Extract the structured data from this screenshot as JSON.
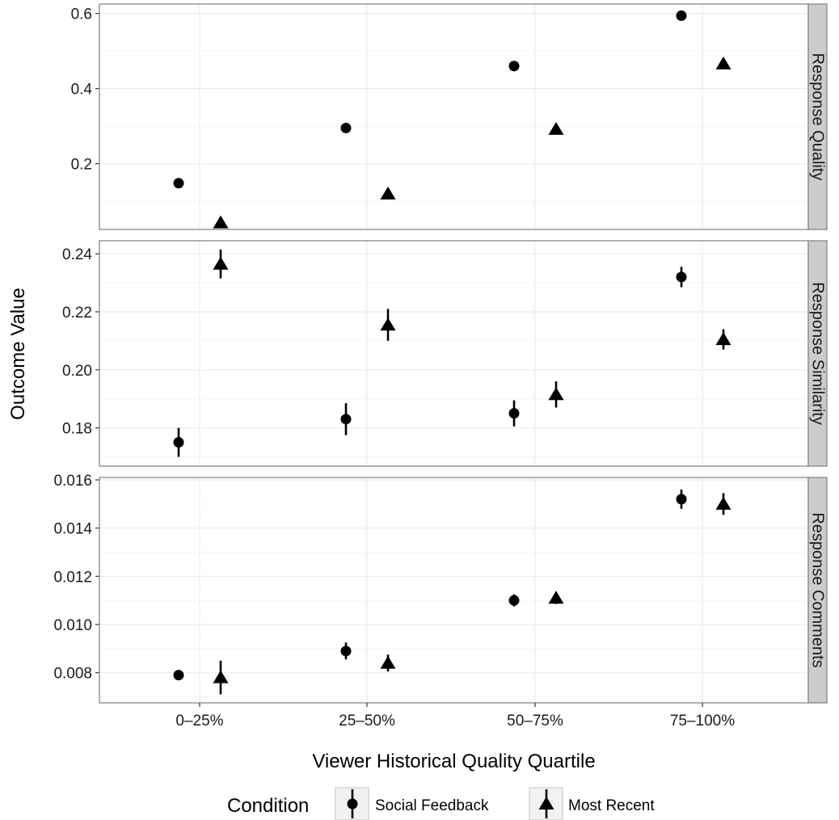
{
  "chart_data": {
    "type": "scatter",
    "xlabel": "Viewer Historical Quality Quartile",
    "ylabel": "Outcome Value",
    "categories": [
      "0–25%",
      "25–50%",
      "50–75%",
      "75–100%"
    ],
    "grid": true,
    "legend": {
      "title": "Condition",
      "position": "bottom",
      "items": [
        {
          "name": "Social Feedback",
          "shape": "circle"
        },
        {
          "name": "Most Recent",
          "shape": "triangle"
        }
      ]
    },
    "colors": {
      "points": "#000000",
      "grid": "#ebebeb",
      "strip": "#cccccc",
      "panel_border": "#7f7f7f"
    },
    "panels": [
      {
        "strip": "Response Quality",
        "ylim": [
          0.025,
          0.625
        ],
        "yticks": [
          0.2,
          0.4,
          0.6
        ],
        "tick_labels": [
          "0.2",
          "0.4",
          "0.6"
        ],
        "series": [
          {
            "name": "Social Feedback",
            "values": [
              0.148,
              0.295,
              0.46,
              0.594
            ],
            "err": [
              0,
              0,
              0,
              0
            ]
          },
          {
            "name": "Most Recent",
            "values": [
              0.043,
              0.12,
              0.292,
              0.466
            ],
            "err": [
              0,
              0,
              0,
              0
            ]
          }
        ]
      },
      {
        "strip": "Response Similarity",
        "ylim": [
          0.1668,
          0.2445
        ],
        "yticks": [
          0.18,
          0.2,
          0.22,
          0.24
        ],
        "tick_labels": [
          "0.18",
          "0.20",
          "0.22",
          "0.24"
        ],
        "series": [
          {
            "name": "Social Feedback",
            "values": [
              0.175,
              0.183,
              0.185,
              0.232
            ],
            "err": [
              0.005,
              0.0055,
              0.0045,
              0.0035
            ]
          },
          {
            "name": "Most Recent",
            "values": [
              0.2365,
              0.2155,
              0.1915,
              0.2105
            ],
            "err": [
              0.005,
              0.0055,
              0.0045,
              0.0035
            ]
          }
        ]
      },
      {
        "strip": "Response Comments",
        "ylim": [
          0.00675,
          0.0161
        ],
        "yticks": [
          0.008,
          0.01,
          0.012,
          0.014,
          0.016
        ],
        "tick_labels": [
          "0.008",
          "0.010",
          "0.012",
          "0.014",
          "0.016"
        ],
        "series": [
          {
            "name": "Social Feedback",
            "values": [
              0.0079,
              0.0089,
              0.011,
              0.0152
            ],
            "err": [
              0.0001,
              0.00035,
              0.00025,
              0.0004
            ]
          },
          {
            "name": "Most Recent",
            "values": [
              0.0078,
              0.0084,
              0.0111,
              0.015
            ],
            "err": [
              0.0007,
              0.00035,
              0.00025,
              0.00045
            ]
          }
        ]
      }
    ]
  }
}
